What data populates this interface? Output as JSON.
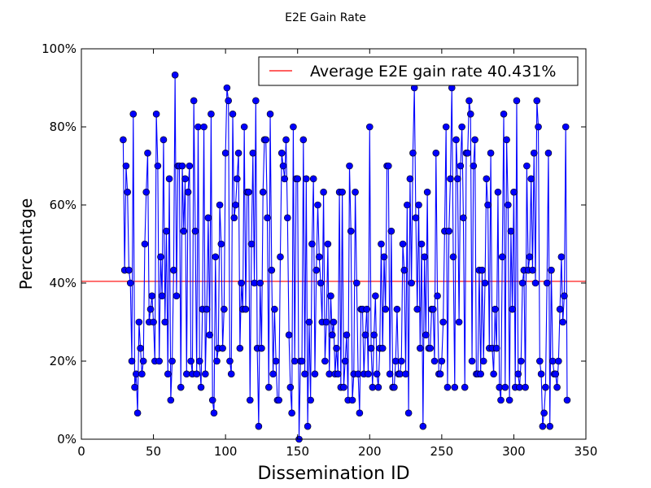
{
  "chart_data": {
    "type": "line",
    "title": "E2E Gain Rate",
    "xlabel": "Dissemination ID",
    "ylabel": "Percentage",
    "xlim": [
      0,
      350
    ],
    "ylim": [
      0,
      100
    ],
    "x_ticks": [
      "0",
      "50",
      "100",
      "150",
      "200",
      "250",
      "300",
      "350"
    ],
    "y_ticks": [
      "0%",
      "20%",
      "40%",
      "60%",
      "80%",
      "100%"
    ],
    "grid": false,
    "legend_position": "top-right",
    "colors": {
      "series": "#0000ff",
      "average": "#ff0000"
    },
    "average_line": {
      "name": "Average E2E gain rate 40.431%",
      "value": 40.431
    },
    "series": [
      {
        "name": "",
        "x_start": 29,
        "values": [
          76.7,
          43.3,
          70,
          63.3,
          43.3,
          40,
          20,
          83.3,
          13.3,
          16.7,
          6.7,
          30,
          23.3,
          16.7,
          20,
          50,
          63.3,
          73.3,
          30,
          33.3,
          36.7,
          30,
          20,
          83.3,
          70,
          20,
          46.7,
          36.7,
          76.7,
          30,
          53.3,
          16.7,
          66.7,
          10,
          20,
          43.3,
          93.3,
          36.7,
          70,
          70,
          13.3,
          70,
          53.3,
          66.7,
          16.7,
          63.3,
          70,
          20,
          16.7,
          86.7,
          53.3,
          16.7,
          80,
          20,
          13.3,
          33.3,
          80,
          16.7,
          33.3,
          56.7,
          26.7,
          83.3,
          10,
          6.7,
          46.7,
          20,
          23.3,
          60,
          50,
          23.3,
          33.3,
          73.3,
          90,
          86.7,
          20,
          16.7,
          83.3,
          56.7,
          60,
          66.7,
          73.3,
          23.3,
          40,
          33.3,
          80,
          33.3,
          63.3,
          63.3,
          10,
          50,
          73.3,
          40,
          86.7,
          23.3,
          3.3,
          40,
          23.3,
          63.3,
          76.7,
          76.7,
          56.7,
          13.3,
          83.3,
          43.3,
          16.7,
          33.3,
          20,
          10,
          10,
          46.7,
          73.3,
          70,
          66.7,
          76.7,
          56.7,
          26.7,
          13.3,
          6.7,
          80,
          20,
          66.7,
          66.7,
          0,
          20,
          20,
          76.7,
          16.7,
          66.7,
          3.3,
          30,
          10,
          50,
          66.7,
          16.7,
          43.3,
          60,
          46.7,
          40,
          30,
          63.3,
          20,
          30,
          50,
          16.7,
          36.7,
          26.7,
          30,
          16.7,
          23.3,
          16.7,
          63.3,
          13.3,
          63.3,
          13.3,
          20,
          26.7,
          10,
          70,
          53.3,
          10,
          16.7,
          63.3,
          40,
          16.7,
          6.7,
          33.3,
          33.3,
          16.7,
          26.7,
          33.3,
          16.7,
          80,
          23.3,
          13.3,
          26.7,
          36.7,
          16.7,
          13.3,
          23.3,
          50,
          23.3,
          46.7,
          33.3,
          70,
          70,
          16.7,
          53.3,
          13.3,
          13.3,
          20,
          33.3,
          16.7,
          16.7,
          20,
          50,
          43.3,
          16.7,
          60,
          6.7,
          66.7,
          40,
          73.3,
          90,
          56.7,
          33.3,
          60,
          23.3,
          50,
          3.3,
          46.7,
          26.7,
          63.3,
          23.3,
          23.3,
          33.3,
          33.3,
          20,
          73.3,
          36.7,
          16.7,
          16.7,
          20,
          30,
          53.3,
          80,
          13.3,
          53.3,
          66.7,
          90,
          46.7,
          13.3,
          76.7,
          66.7,
          30,
          70,
          80,
          56.7,
          13.3,
          73.3,
          73.3,
          86.7,
          83.3,
          20,
          70,
          76.7,
          16.7,
          16.7,
          43.3,
          16.7,
          43.3,
          20,
          40,
          66.7,
          60,
          23.3,
          73.3,
          23.3,
          16.7,
          33.3,
          23.3,
          63.3,
          13.3,
          10,
          46.7,
          83.3,
          13.3,
          76.7,
          60,
          10,
          53.3,
          33.3,
          63.3,
          13.3,
          86.7,
          16.7,
          13.3,
          20,
          40,
          43.3,
          13.3,
          70,
          43.3,
          46.7,
          66.7,
          43.3,
          73.3,
          40,
          86.7,
          80,
          20,
          16.7,
          3.3,
          6.7,
          13.3,
          40,
          73.3,
          3.3,
          43.3,
          20,
          16.7,
          16.7,
          13.3,
          20,
          33.3,
          46.7,
          30,
          36.7,
          80,
          10
        ]
      }
    ]
  }
}
